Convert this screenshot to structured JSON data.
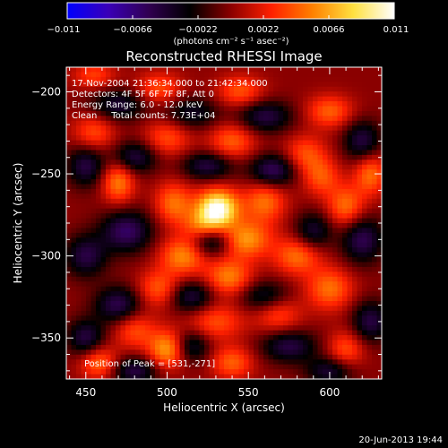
{
  "chart_data": {
    "type": "heatmap",
    "title": "Reconstructed RHESSI Image",
    "xlabel": "Heliocentric X (arcsec)",
    "ylabel": "Heliocentric Y (arcsec)",
    "xlim": [
      438,
      632
    ],
    "ylim": [
      -375,
      -185
    ],
    "x_ticks": [
      450,
      500,
      550,
      600
    ],
    "y_ticks": [
      -200,
      -250,
      -300,
      -350
    ],
    "x_tick_labels": [
      "450",
      "500",
      "550",
      "600"
    ],
    "y_tick_labels": [
      "−200",
      "−250",
      "−300",
      "−350"
    ],
    "colorbar": {
      "min": -0.011,
      "max": 0.011,
      "ticks": [
        -0.011,
        -0.0066,
        -0.0022,
        0.0022,
        0.0066,
        0.011
      ],
      "tick_labels": [
        "−0.011",
        "−0.0066",
        "−0.0022",
        "0.0022",
        "0.0066",
        "0.011"
      ],
      "label": "(photons cm⁻² s⁻¹ asec⁻²)",
      "colors": [
        "#0000ff",
        "#3a00b8",
        "#300050",
        "#000000",
        "#8a0000",
        "#ff2000",
        "#ff8000",
        "#ffe040",
        "#ffffff"
      ]
    },
    "annotations": [
      "17-Nov-2004 21:36:34.000 to 21:42:34.000",
      "Detectors: 4F 5F 6F 7F 8F, Att 0",
      "Energy Range: 6.0 - 12.0 keV",
      "Clean     Total counts: 7.73E+04"
    ],
    "peak_label": "Position of Peak = [531,-271]",
    "peak": [
      531,
      -271
    ],
    "peak_value": 0.011,
    "sources_note_excluded": true,
    "blobs": [
      {
        "x": 531,
        "y": -271,
        "v": 0.011,
        "sx": 9,
        "sy": 8
      },
      {
        "x": 523,
        "y": -283,
        "v": 0.006,
        "sx": 9,
        "sy": 7
      },
      {
        "x": 548,
        "y": -290,
        "v": 0.0062,
        "sx": 11,
        "sy": 8
      },
      {
        "x": 510,
        "y": -300,
        "v": 0.0058,
        "sx": 10,
        "sy": 8
      },
      {
        "x": 560,
        "y": -267,
        "v": 0.005,
        "sx": 9,
        "sy": 9
      },
      {
        "x": 504,
        "y": -268,
        "v": 0.005,
        "sx": 8,
        "sy": 9
      },
      {
        "x": 538,
        "y": -313,
        "v": 0.0055,
        "sx": 10,
        "sy": 8
      },
      {
        "x": 495,
        "y": -320,
        "v": 0.0045,
        "sx": 9,
        "sy": 8
      },
      {
        "x": 580,
        "y": -300,
        "v": 0.005,
        "sx": 10,
        "sy": 8
      },
      {
        "x": 600,
        "y": -320,
        "v": 0.005,
        "sx": 10,
        "sy": 9
      },
      {
        "x": 568,
        "y": -335,
        "v": 0.004,
        "sx": 10,
        "sy": 8
      },
      {
        "x": 530,
        "y": -340,
        "v": 0.004,
        "sx": 12,
        "sy": 8
      },
      {
        "x": 480,
        "y": -345,
        "v": 0.004,
        "sx": 9,
        "sy": 8
      },
      {
        "x": 500,
        "y": -357,
        "v": 0.0065,
        "sx": 8,
        "sy": 8
      },
      {
        "x": 458,
        "y": -365,
        "v": 0.005,
        "sx": 8,
        "sy": 7
      },
      {
        "x": 470,
        "y": -255,
        "v": 0.0055,
        "sx": 7,
        "sy": 9
      },
      {
        "x": 610,
        "y": -270,
        "v": 0.005,
        "sx": 8,
        "sy": 9
      },
      {
        "x": 625,
        "y": -250,
        "v": 0.005,
        "sx": 7,
        "sy": 9
      },
      {
        "x": 585,
        "y": -238,
        "v": 0.004,
        "sx": 9,
        "sy": 8
      },
      {
        "x": 540,
        "y": -230,
        "v": 0.0045,
        "sx": 10,
        "sy": 8
      },
      {
        "x": 500,
        "y": -228,
        "v": 0.004,
        "sx": 10,
        "sy": 8
      },
      {
        "x": 455,
        "y": -225,
        "v": 0.004,
        "sx": 9,
        "sy": 8
      },
      {
        "x": 600,
        "y": -212,
        "v": 0.0045,
        "sx": 10,
        "sy": 7
      },
      {
        "x": 545,
        "y": -200,
        "v": 0.0042,
        "sx": 10,
        "sy": 7
      },
      {
        "x": 495,
        "y": -198,
        "v": 0.004,
        "sx": 10,
        "sy": 7
      },
      {
        "x": 455,
        "y": -190,
        "v": 0.0035,
        "sx": 9,
        "sy": 6
      },
      {
        "x": 610,
        "y": -357,
        "v": 0.004,
        "sx": 8,
        "sy": 8
      },
      {
        "x": 540,
        "y": -365,
        "v": 0.0045,
        "sx": 9,
        "sy": 7
      },
      {
        "x": 595,
        "y": -252,
        "v": 0.004,
        "sx": 8,
        "sy": 8
      },
      {
        "x": 527,
        "y": -290,
        "v": -0.007,
        "sx": 9,
        "sy": 7
      },
      {
        "x": 475,
        "y": -285,
        "v": -0.006,
        "sx": 11,
        "sy": 9
      },
      {
        "x": 450,
        "y": -300,
        "v": -0.005,
        "sx": 9,
        "sy": 9
      },
      {
        "x": 565,
        "y": -248,
        "v": -0.006,
        "sx": 10,
        "sy": 7
      },
      {
        "x": 525,
        "y": -245,
        "v": -0.005,
        "sx": 11,
        "sy": 6
      },
      {
        "x": 480,
        "y": -240,
        "v": -0.005,
        "sx": 10,
        "sy": 7
      },
      {
        "x": 450,
        "y": -245,
        "v": -0.005,
        "sx": 8,
        "sy": 9
      },
      {
        "x": 560,
        "y": -215,
        "v": -0.005,
        "sx": 12,
        "sy": 7
      },
      {
        "x": 515,
        "y": -213,
        "v": -0.004,
        "sx": 12,
        "sy": 7
      },
      {
        "x": 470,
        "y": -208,
        "v": -0.0045,
        "sx": 12,
        "sy": 7
      },
      {
        "x": 620,
        "y": -230,
        "v": -0.005,
        "sx": 8,
        "sy": 9
      },
      {
        "x": 620,
        "y": -290,
        "v": -0.0055,
        "sx": 9,
        "sy": 10
      },
      {
        "x": 590,
        "y": -285,
        "v": -0.0045,
        "sx": 8,
        "sy": 8
      },
      {
        "x": 560,
        "y": -325,
        "v": -0.0045,
        "sx": 11,
        "sy": 7
      },
      {
        "x": 515,
        "y": -325,
        "v": -0.005,
        "sx": 10,
        "sy": 7
      },
      {
        "x": 470,
        "y": -330,
        "v": -0.0055,
        "sx": 10,
        "sy": 8
      },
      {
        "x": 450,
        "y": -350,
        "v": -0.005,
        "sx": 8,
        "sy": 8
      },
      {
        "x": 515,
        "y": -355,
        "v": -0.0045,
        "sx": 8,
        "sy": 7
      },
      {
        "x": 575,
        "y": -355,
        "v": -0.005,
        "sx": 12,
        "sy": 7
      },
      {
        "x": 625,
        "y": -340,
        "v": -0.005,
        "sx": 8,
        "sy": 9
      },
      {
        "x": 480,
        "y": -370,
        "v": -0.005,
        "sx": 10,
        "sy": 6
      },
      {
        "x": 600,
        "y": -370,
        "v": -0.0045,
        "sx": 10,
        "sy": 6
      }
    ]
  },
  "footer": {
    "date_stamp": "20-Jun-2013 19:44"
  }
}
